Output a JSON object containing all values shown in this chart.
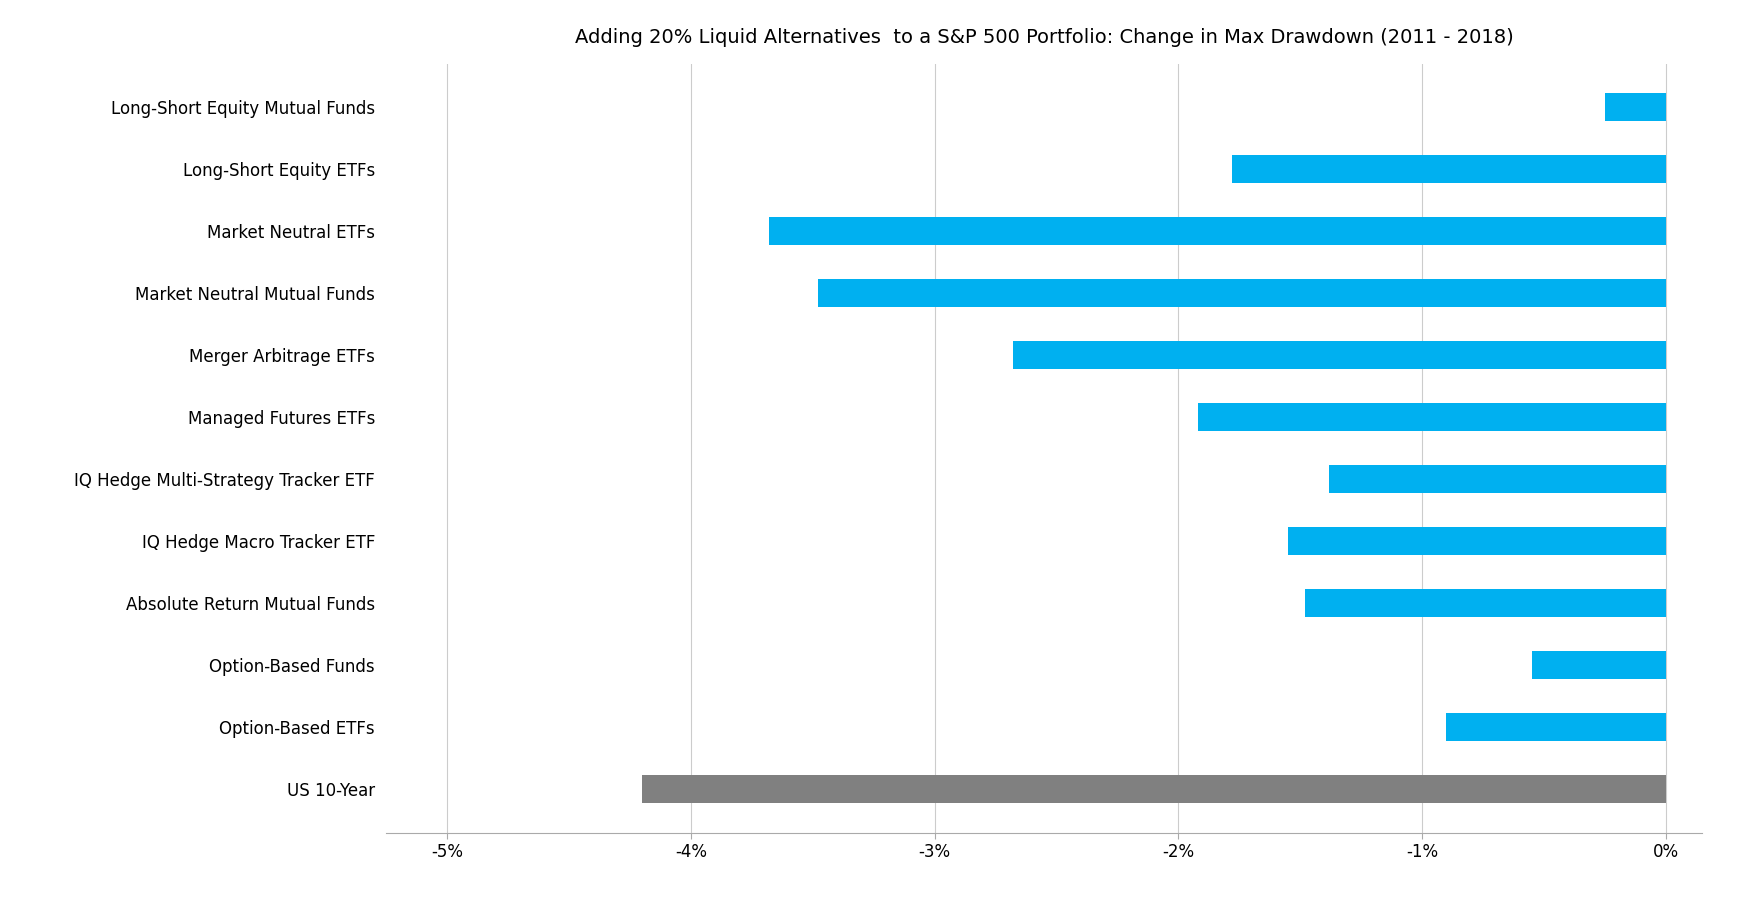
{
  "title": "Adding 20% Liquid Alternatives  to a S&P 500 Portfolio: Change in Max Drawdown (2011 - 2018)",
  "categories": [
    "US 10-Year",
    "Option-Based ETFs",
    "Option-Based Funds",
    "Absolute Return Mutual Funds",
    "IQ Hedge Macro Tracker ETF",
    "IQ Hedge Multi-Strategy Tracker ETF",
    "Managed Futures ETFs",
    "Merger Arbitrage ETFs",
    "Market Neutral Mutual Funds",
    "Market Neutral ETFs",
    "Long-Short Equity ETFs",
    "Long-Short Equity Mutual Funds"
  ],
  "values": [
    -4.2,
    -0.9,
    -0.55,
    -1.48,
    -1.55,
    -1.38,
    -1.92,
    -2.68,
    -3.48,
    -3.68,
    -1.78,
    -0.25
  ],
  "colors": [
    "#808080",
    "#00B0F0",
    "#00B0F0",
    "#00B0F0",
    "#00B0F0",
    "#00B0F0",
    "#00B0F0",
    "#00B0F0",
    "#00B0F0",
    "#00B0F0",
    "#00B0F0",
    "#00B0F0"
  ],
  "xlim": [
    -5.25,
    0.15
  ],
  "xticks": [
    -5.0,
    -4.0,
    -3.0,
    -2.0,
    -1.0,
    0.0
  ],
  "xtick_labels": [
    "-5%",
    "-4%",
    "-3%",
    "-2%",
    "-1%",
    "0%"
  ],
  "background_color": "#FFFFFF",
  "title_fontsize": 14,
  "tick_fontsize": 12,
  "label_fontsize": 12,
  "bar_height": 0.45
}
